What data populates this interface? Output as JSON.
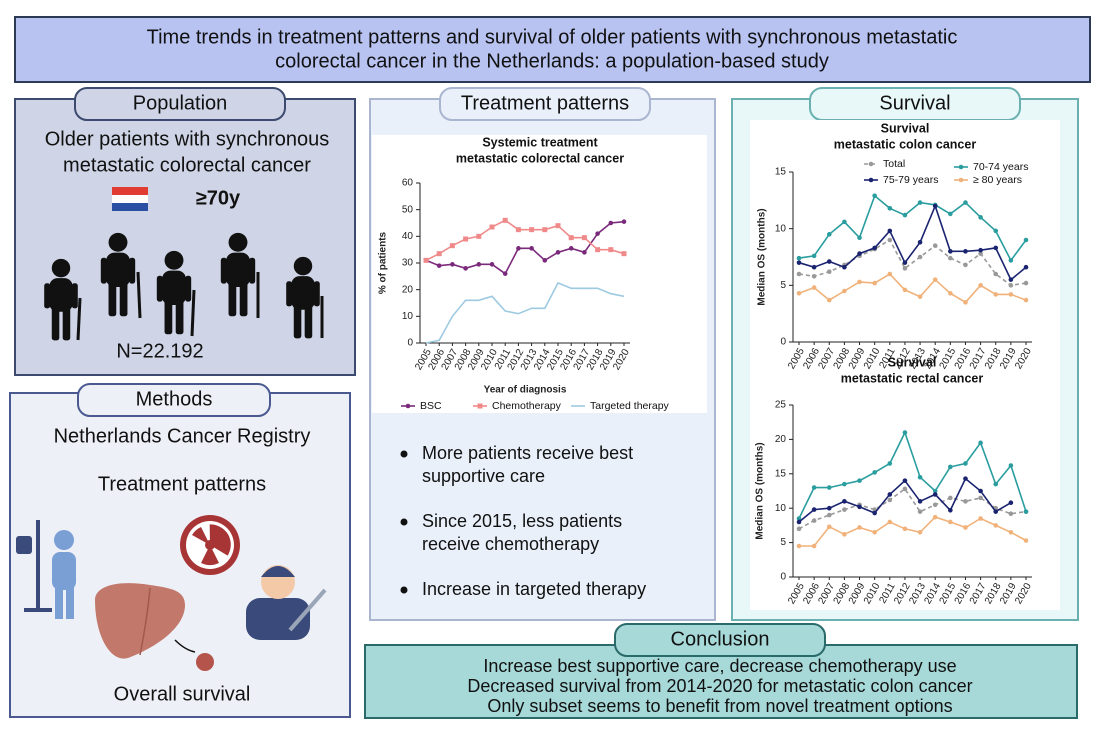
{
  "title": [
    "Time trends in treatment patterns and survival of older patients with synchronous metastatic",
    "colorectal cancer in the Netherlands: a population-based study"
  ],
  "population": {
    "label": "Population",
    "text": [
      "Older patients with synchronous",
      "metastatic colorectal cancer"
    ],
    "age": "≥70y",
    "n": "N=22.192"
  },
  "methods": {
    "label": "Methods",
    "items": [
      "Netherlands Cancer Registry",
      "Treatment patterns",
      "Overall survival"
    ]
  },
  "treatment": {
    "label": "Treatment patterns",
    "bullets": [
      [
        "More patients receive best",
        "supportive care"
      ],
      [
        "Since 2015, less patients",
        "receive chemotherapy"
      ],
      [
        "Increase in targeted therapy"
      ]
    ]
  },
  "survival": {
    "label": "Survival"
  },
  "conclusion": {
    "label": "Conclusion",
    "lines": [
      "Increase best supportive care, decrease chemotherapy use",
      "Decreased survival from 2014-2020 for metastatic colon cancer",
      "Only subset seems to benefit from novel treatment options"
    ]
  },
  "chart_data": [
    {
      "type": "line",
      "title": [
        "Systemic treatment",
        "metastatic colorectal cancer"
      ],
      "x_label": "Year of diagnosis",
      "y_label": "% of patients",
      "categories": [
        "2005",
        "2006",
        "2007",
        "2008",
        "2009",
        "2010",
        "2011",
        "2012",
        "2013",
        "2014",
        "2015",
        "2016",
        "2017",
        "2018",
        "2019",
        "2020"
      ],
      "ylim": [
        0,
        60
      ],
      "yticks": [
        0,
        10,
        20,
        30,
        40,
        50,
        60
      ],
      "series": [
        {
          "name": "BSC",
          "color": "#7b2a7b",
          "marker": "circle",
          "values": [
            31,
            29,
            29.5,
            28,
            29.5,
            29.5,
            26,
            35.5,
            35.5,
            31,
            34,
            35.5,
            34,
            41,
            45,
            45.5
          ]
        },
        {
          "name": "Chemotherapy",
          "color": "#f08a8a",
          "marker": "square",
          "values": [
            31,
            33.5,
            36.5,
            39,
            40,
            43.5,
            46,
            42.5,
            42.5,
            42.5,
            44,
            39.5,
            39.5,
            35,
            35,
            33.5
          ]
        },
        {
          "name": "Targeted therapy",
          "color": "#9ecae1",
          "marker": "none",
          "values": [
            0,
            1,
            10,
            16,
            16,
            17.5,
            12,
            11,
            13,
            13,
            22.5,
            20.5,
            20.5,
            20.5,
            18.5,
            17.5
          ]
        }
      ]
    },
    {
      "type": "line",
      "title": [
        "Survival",
        "metastatic colon cancer"
      ],
      "y_label": "Median OS (months)",
      "categories": [
        "2005",
        "2006",
        "2007",
        "2008",
        "2009",
        "2010",
        "2011",
        "2012",
        "2013",
        "2014",
        "2015",
        "2016",
        "2017",
        "2018",
        "2019",
        "2020"
      ],
      "ylim": [
        0,
        15
      ],
      "yticks": [
        0,
        5,
        10,
        15
      ],
      "series": [
        {
          "name": "Total",
          "color": "#999999",
          "style": "dashed",
          "marker": "circle",
          "values": [
            6,
            5.8,
            6.2,
            6.8,
            7.6,
            8.2,
            9,
            6.5,
            7.5,
            8.5,
            7.4,
            6.8,
            7.8,
            6,
            5,
            5.2
          ]
        },
        {
          "name": "70-74 years",
          "color": "#2a9d9f",
          "marker": "circle",
          "values": [
            7.4,
            7.6,
            9.5,
            10.6,
            9.2,
            12.9,
            11.8,
            11.2,
            12.3,
            12.1,
            11.3,
            12.3,
            11,
            9.8,
            7.2,
            9
          ]
        },
        {
          "name": "75-79 years",
          "color": "#1a2370",
          "marker": "circle",
          "values": [
            7,
            6.6,
            7.1,
            6.6,
            7.8,
            8.3,
            9.8,
            7,
            8.8,
            12,
            8,
            8,
            8.1,
            8.3,
            5.5,
            6.6
          ]
        },
        {
          "name": "≥ 80 years",
          "color": "#f0b27a",
          "marker": "circle",
          "values": [
            4.3,
            4.8,
            3.7,
            4.5,
            5.3,
            5.2,
            6,
            4.6,
            4,
            5.5,
            4.3,
            3.5,
            5,
            4.2,
            4.2,
            3.7
          ]
        }
      ]
    },
    {
      "type": "line",
      "title": [
        "Survival",
        "metastatic rectal cancer"
      ],
      "y_label": "Median OS (months)",
      "categories": [
        "2005",
        "2006",
        "2007",
        "2008",
        "2009",
        "2010",
        "2011",
        "2012",
        "2013",
        "2014",
        "2015",
        "2016",
        "2017",
        "2018",
        "2019",
        "2020"
      ],
      "ylim": [
        0,
        25
      ],
      "yticks": [
        0,
        5,
        10,
        15,
        20,
        25
      ],
      "series": [
        {
          "color": "#999999",
          "style": "dashed",
          "marker": "circle",
          "values": [
            7,
            8.2,
            9,
            9.8,
            10.5,
            9.8,
            11.2,
            12.8,
            9.5,
            10.5,
            11.5,
            11,
            11.5,
            10,
            9.2,
            9.5
          ]
        },
        {
          "color": "#2a9d9f",
          "marker": "circle",
          "values": [
            8.5,
            13,
            13,
            13.5,
            14,
            15.2,
            16.5,
            21,
            14.5,
            12.5,
            16,
            16.5,
            19.5,
            13.5,
            16.2,
            9.5
          ]
        },
        {
          "color": "#1a2370",
          "marker": "circle",
          "values": [
            8,
            9.8,
            10,
            11,
            10.2,
            9.3,
            12,
            14,
            11,
            12,
            9.7,
            14.3,
            12.5,
            9.5,
            10.8,
            null
          ]
        },
        {
          "color": "#f0b27a",
          "marker": "circle",
          "values": [
            4.5,
            4.5,
            7.3,
            6.2,
            7.2,
            6.5,
            8,
            7,
            6.5,
            8.7,
            8,
            7.2,
            8.5,
            7.5,
            6.5,
            5.3
          ]
        }
      ]
    }
  ]
}
